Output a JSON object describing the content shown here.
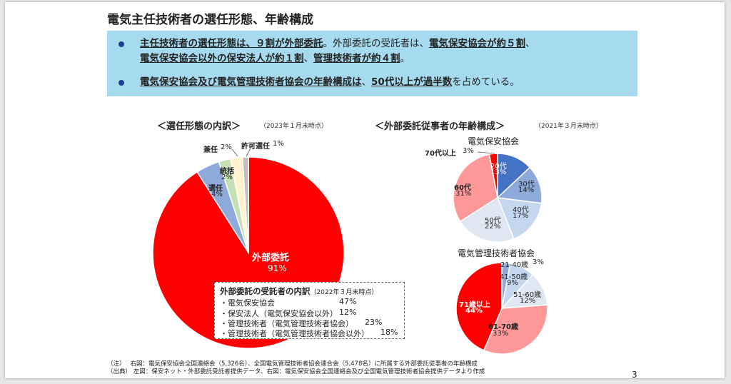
{
  "title": "電気主任技術者の選任形態、年齢構成",
  "summary": {
    "bullet1": {
      "line1": [
        {
          "t": "主任技術者の選任形態は、９割が外部委託",
          "u": true
        },
        {
          "t": "。外部委託の受託者は、",
          "u": false
        },
        {
          "t": "電気保安協会が約５割",
          "u": true
        },
        {
          "t": "、",
          "u": false
        }
      ],
      "line2": [
        {
          "t": "電気保安協会以外の保安法人が約１割",
          "u": true
        },
        {
          "t": "、",
          "u": false
        },
        {
          "t": "管理技術者が約４割",
          "u": true
        },
        {
          "t": "。",
          "u": false
        }
      ]
    },
    "bullet2": [
      {
        "t": "電気保安協会及び電気管理技術者協会の年齢構成は",
        "u": true
      },
      {
        "t": "、",
        "u": false
      },
      {
        "t": "50代以上が過半数",
        "u": true
      },
      {
        "t": "を占めている。",
        "u": false
      }
    ]
  },
  "left_section": {
    "title": "＜選任形態の内訳＞",
    "note": "（2023年１月末時点）"
  },
  "right_section": {
    "title": "＜外部委託従事者の年齢構成＞",
    "note": "（2021年３月末時点）"
  },
  "legend": {
    "title": "外部委託の受託者の内訳",
    "note": "（2022年３月末時点）",
    "rows": [
      {
        "label": "・電気保安協会",
        "value": "47%"
      },
      {
        "label": "・保安法人（電気保安協会以外）",
        "value": "12%"
      },
      {
        "label": "・管理技術者（電気管理技術者協会）",
        "value": "23%"
      },
      {
        "label": "・管理技術者（電気管理技術者協会以外）",
        "value": "18%"
      }
    ]
  },
  "chart_data": [
    {
      "type": "pie",
      "title": "",
      "slices": [
        {
          "label": "外部委託",
          "value": 91,
          "text": "91%",
          "color": "#ff0000"
        },
        {
          "label": "選任",
          "value": 4,
          "text": "4%",
          "color": "#8eaadb"
        },
        {
          "label": "統括",
          "value": 2,
          "text": "2%",
          "color": "#c5e0b4"
        },
        {
          "label": "兼任",
          "value": 2,
          "text": "2%",
          "color": "#fff2cc"
        },
        {
          "label": "許可選任",
          "value": 1,
          "text": "1%",
          "color": "#bfbfbf"
        }
      ]
    },
    {
      "type": "pie",
      "title": "電気保安協会",
      "slices": [
        {
          "label": "20代",
          "value": 13,
          "text": "13%",
          "color": "#4472c4"
        },
        {
          "label": "30代",
          "value": 14,
          "text": "14%",
          "color": "#8eaadb"
        },
        {
          "label": "40代",
          "value": 17,
          "text": "17%",
          "color": "#c5d6ef"
        },
        {
          "label": "50代",
          "value": 22,
          "text": "22%",
          "color": "#dfe7f3"
        },
        {
          "label": "60代",
          "value": 31,
          "text": "31%",
          "color": "#ff9999"
        },
        {
          "label": "70代以上",
          "value": 3,
          "text": "3%",
          "color": "#ff0000"
        }
      ]
    },
    {
      "type": "pie",
      "title": "電気管理技術者協会",
      "slices": [
        {
          "label": "21-40歳",
          "value": 3,
          "text": "3%",
          "color": "#8eaadb"
        },
        {
          "label": "41-50歳",
          "value": 9,
          "text": "9%",
          "color": "#c5d6ef"
        },
        {
          "label": "51-60歳",
          "value": 12,
          "text": "12%",
          "color": "#dfe7f3"
        },
        {
          "label": "61-70歳",
          "value": 33,
          "text": "33%",
          "color": "#ff9999"
        },
        {
          "label": "71歳以上",
          "value": 44,
          "text": "44%",
          "color": "#ff0000"
        }
      ]
    }
  ],
  "footnotes": {
    "line1": "（注）　 右図：電気保安協会全国連絡会（5,326名）、全国電気管理技術者協会連合会（5,478名）に所属する外部委託従事者の年齢構成",
    "line2": "（出典） 左図：保安ネット・外部委託受託者提供データ、右図：電気保安協会全国連絡会及び全国電気管理技術者協会提供データより作成"
  },
  "page_number": "3"
}
